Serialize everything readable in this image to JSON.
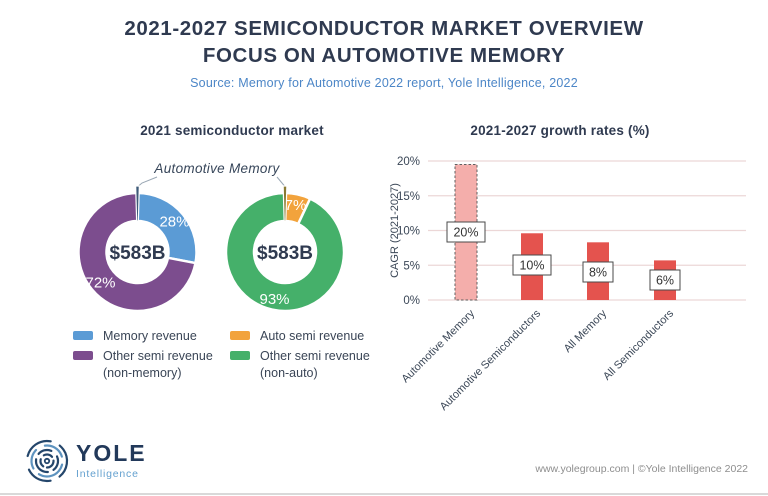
{
  "header": {
    "title_line1": "2021-2027 SEMICONDUCTOR MARKET OVERVIEW",
    "title_line2": "FOCUS ON AUTOMOTIVE MEMORY",
    "source": "Source: Memory for Automotive 2022 report, Yole Intelligence, 2022"
  },
  "donut_section": {
    "title": "2021 semiconductor market",
    "annotation": "Automotive Memory"
  },
  "bar_section": {
    "title": "2021-2027 growth rates (%)"
  },
  "legends": {
    "left": [
      {
        "swatch": "#5B9BD5",
        "label": "Memory revenue"
      },
      {
        "swatch": "#7C4D8E",
        "label": "Other semi revenue",
        "label2": "(non-memory)"
      }
    ],
    "right": [
      {
        "swatch": "#F2A33C",
        "label": "Auto semi revenue"
      },
      {
        "swatch": "#45B06A",
        "label": "Other semi revenue",
        "label2": "(non-auto)"
      }
    ]
  },
  "footer": {
    "logo_text": "YOLE",
    "logo_subtext": "Intelligence",
    "credit": "www.yolegroup.com | ©Yole Intelligence 2022"
  },
  "colors": {
    "title_navy": "#2F3A50",
    "subtitle_blue": "#4C86C7",
    "memory_blue": "#5B9BD5",
    "other_purple": "#7C4D8E",
    "auto_orange": "#F2A33C",
    "other_green": "#45B06A",
    "bar_red": "#E4534E",
    "bar_pink": "#F4AEAB",
    "callout_steel": "#3E5A78",
    "callout_olive": "#8A7A33",
    "gridline": "#ECD7D7"
  },
  "chart_data": [
    {
      "type": "pie",
      "subtype": "donut",
      "title": "2021 semiconductor market",
      "center_label": "$583B",
      "slices": [
        {
          "label": "Memory revenue",
          "value": 28,
          "display": "28%",
          "color": "#5B9BD5"
        },
        {
          "label": "Other semi revenue (non-memory)",
          "value": 72,
          "display": "72%",
          "color": "#7C4D8E"
        }
      ],
      "callout": {
        "label": "Automotive Memory",
        "color": "#3E5A78"
      }
    },
    {
      "type": "pie",
      "subtype": "donut",
      "title": "2021 semiconductor market",
      "center_label": "$583B",
      "slices": [
        {
          "label": "Auto semi revenue",
          "value": 7,
          "display": "7%",
          "color": "#F2A33C"
        },
        {
          "label": "Other semi revenue (non-auto)",
          "value": 93,
          "display": "93%",
          "color": "#45B06A"
        }
      ],
      "callout": {
        "label": "Automotive Memory",
        "color": "#8A7A33"
      }
    },
    {
      "type": "bar",
      "title": "2021-2027 growth rates (%)",
      "ylabel": "CAGR (2021-2027)",
      "categories": [
        "Automotive Memory",
        "Automotive Semiconductors",
        "All Memory",
        "All Semiconductors"
      ],
      "values": [
        20,
        10,
        8,
        6
      ],
      "labels": [
        "20%",
        "10%",
        "8%",
        "6%"
      ],
      "bar_tops": [
        19.5,
        9.6,
        8.3,
        5.7
      ],
      "ylim": [
        0,
        20
      ],
      "yticks": [
        0,
        5,
        10,
        15,
        20
      ],
      "ytick_labels": [
        "0%",
        "5%",
        "10%",
        "15%",
        "20%"
      ],
      "grid": true,
      "legend": "none",
      "bar_color": "#E4534E",
      "highlight": {
        "index": 0,
        "fill": "#F4AEAB",
        "border": "dashed"
      }
    }
  ]
}
